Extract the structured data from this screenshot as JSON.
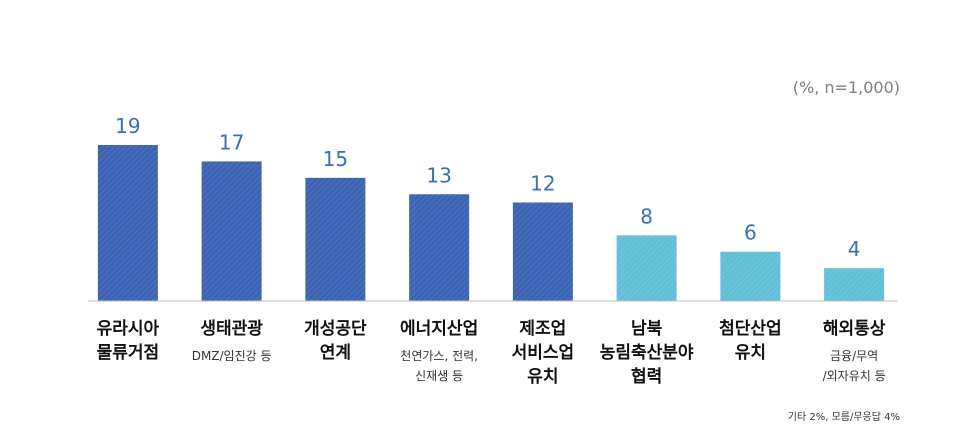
{
  "chart_data": {
    "type": "bar",
    "unit_note": "(%, n=1,000)",
    "footnote": "기타 2%, 모름/무응답 4%",
    "ylim": [
      0,
      20
    ],
    "categories": [
      {
        "lines": [
          "유라시아",
          "물류거점"
        ],
        "sub": []
      },
      {
        "lines": [
          "생태관광"
        ],
        "sub": [
          "DMZ/임진강 등"
        ]
      },
      {
        "lines": [
          "개성공단",
          "연계"
        ],
        "sub": []
      },
      {
        "lines": [
          "에너지산업"
        ],
        "sub": [
          "천연가스, 전력,",
          "신재생 등"
        ]
      },
      {
        "lines": [
          "제조업",
          "서비스업",
          "유치"
        ],
        "sub": []
      },
      {
        "lines": [
          "남북",
          "농림축산분야",
          "협력"
        ],
        "sub": []
      },
      {
        "lines": [
          "첨단산업",
          "유치"
        ],
        "sub": []
      },
      {
        "lines": [
          "해외통상"
        ],
        "sub": [
          "금융/무역",
          "/외자유치 등"
        ]
      }
    ],
    "values": [
      19,
      17,
      15,
      13,
      12,
      8,
      6,
      4
    ],
    "highlight_count": 5,
    "colors": {
      "dark_bar": "#3c63b4",
      "light_bar": "#63bfd6",
      "value_text": "#3a6fb4",
      "axis": "#bfbfbf"
    }
  }
}
